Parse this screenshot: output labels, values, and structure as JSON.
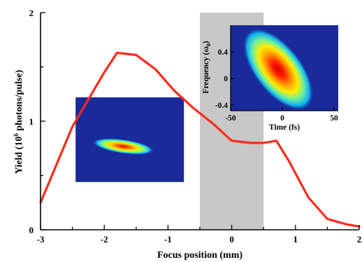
{
  "chart_data": {
    "type": "line",
    "xlabel": "Focus position (mm)",
    "ylabel_main": "Yield (10",
    "ylabel_sup": "6",
    "ylabel_rest": " photons/pulse)",
    "xlim": [
      -3,
      2
    ],
    "ylim": [
      0,
      2
    ],
    "x_ticks": [
      "-3",
      "-2",
      "-1",
      "0",
      "1",
      "2"
    ],
    "y_ticks": [
      "0",
      "1",
      "2"
    ],
    "grid": false,
    "shaded_region": [
      -0.5,
      0.5
    ],
    "colors": {
      "line": "#ff2a1a",
      "shade": "#c8c8c8",
      "inset_bg": "#1a2a9a"
    },
    "series": [
      {
        "x": [
          -3.0,
          -2.5,
          -2.2,
          -2.0,
          -1.8,
          -1.5,
          -1.2,
          -0.9,
          -0.6,
          -0.3,
          0.0,
          0.3,
          0.5,
          0.7,
          0.9,
          1.2,
          1.5,
          1.8,
          2.0
        ],
        "y": [
          0.25,
          0.95,
          1.25,
          1.45,
          1.63,
          1.61,
          1.48,
          1.28,
          1.12,
          0.98,
          0.82,
          0.8,
          0.8,
          0.82,
          0.63,
          0.3,
          0.1,
          0.05,
          0.03
        ]
      }
    ],
    "insets": [
      {
        "type": "heatmap",
        "position_in_data": {
          "x": [
            -2.45,
            -0.75
          ],
          "y": [
            0.44,
            1.22
          ]
        },
        "blob_shape": "narrow-elongated",
        "axes": false
      },
      {
        "type": "heatmap",
        "xlabel": "Time (fs)",
        "ylabel_main": "Frequency (ω",
        "ylabel_sub": "0",
        "ylabel_rest": ")",
        "x_ticks": [
          "-50",
          "0",
          "50"
        ],
        "y_ticks": [
          "0.4",
          "0",
          "-0.4"
        ],
        "blob_shape": "broad-tilted",
        "axes": true
      }
    ]
  }
}
